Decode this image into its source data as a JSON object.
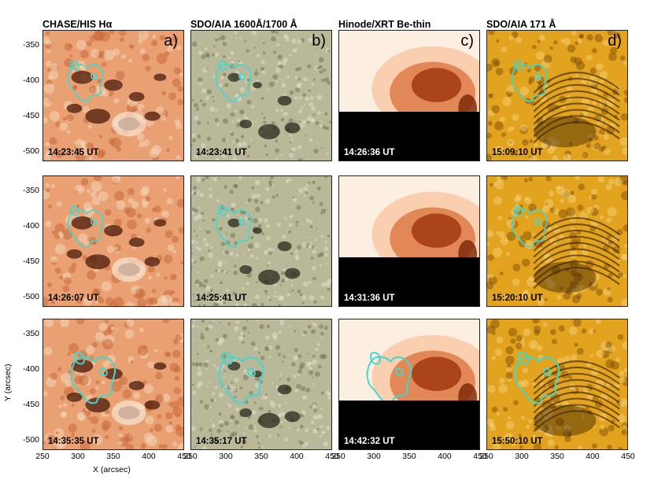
{
  "columns": [
    {
      "title": "CHASE/HIS Hα",
      "panel_label": "a)",
      "times": [
        "14:23:45 UT",
        "14:26:07 UT",
        "14:35:35 UT"
      ]
    },
    {
      "title": "SDO/AIA 1600Å/1700 Å",
      "panel_label": "b)",
      "times": [
        "14:23:41 UT",
        "14:25:41 UT",
        "14:35:17 UT"
      ]
    },
    {
      "title": "Hinode/XRT Be-thin",
      "panel_label": "c)",
      "times": [
        "14:26:36 UT",
        "14:31:36 UT",
        "14:42:32 UT"
      ]
    },
    {
      "title": "SDO/AIA 171 Å",
      "panel_label": "d)",
      "times": [
        "15:09:10 UT",
        "15:20:10 UT",
        "15:50:10 UT"
      ]
    }
  ],
  "axes": {
    "y_ticks": [
      "-350",
      "-400",
      "-450",
      "-500"
    ],
    "x_ticks": [
      "250",
      "300",
      "350",
      "400",
      "450"
    ],
    "x_ticks_first": [
      "250",
      "300",
      "350",
      "400",
      "450"
    ],
    "xlabel": "X (arcsec)",
    "ylabel": "Y (arcsec)",
    "x_range": [
      250,
      450
    ],
    "y_range": [
      -530,
      -330
    ]
  },
  "colors": {
    "contour": "#40d8d0",
    "halpha_base": "#e9a173",
    "aia1600_base": "#b9b99a",
    "xrt_base": "#f7c7a4",
    "aia171_base": "#e2a31e"
  }
}
